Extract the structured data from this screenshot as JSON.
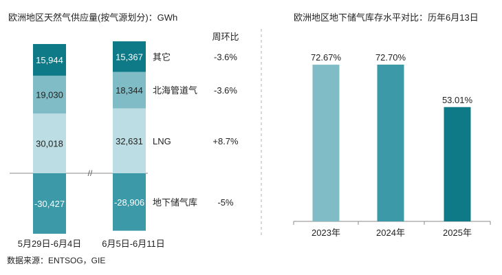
{
  "chart_data": [
    {
      "type": "bar",
      "stacked": true,
      "title": "欧洲地区天然气供应量(按气源划分)：GWh",
      "categories": [
        "5月29日-6月4日",
        "6月5日-6月11日"
      ],
      "axis_break": "//",
      "change_header": "周环比",
      "series": [
        {
          "name": "LNG",
          "values": [
            30018,
            32631
          ],
          "labels": [
            "30,018",
            "32,631"
          ],
          "change": "+8.7%",
          "color": "#bcdde3",
          "text_color": "#222222"
        },
        {
          "name": "北海管道气",
          "values": [
            19030,
            18344
          ],
          "labels": [
            "19,030",
            "18,344"
          ],
          "change": "-3.6%",
          "color": "#7fbcc6",
          "text_color": "#222222"
        },
        {
          "name": "其它",
          "values": [
            15944,
            15367
          ],
          "labels": [
            "15,944",
            "15,367"
          ],
          "change": "-3.6%",
          "color": "#0e7a87",
          "text_color": "#ffffff"
        },
        {
          "name": "地下储气库",
          "values": [
            -30427,
            -28906
          ],
          "labels": [
            "-30,427",
            "-28,906"
          ],
          "change": "-5%",
          "color": "#3c9aa8",
          "text_color": "#ffffff"
        }
      ]
    },
    {
      "type": "bar",
      "title": "欧洲地区地下储气库存水平对比：历年6月13日",
      "categories": [
        "2023年",
        "2024年",
        "2025年"
      ],
      "values": [
        72.67,
        72.7,
        53.01
      ],
      "labels": [
        "72.67%",
        "72.70%",
        "53.01%"
      ],
      "colors": [
        "#7fbcc6",
        "#3c9aa8",
        "#0e7a87"
      ]
    }
  ],
  "source": "数据来源：ENTSOG，GIE"
}
